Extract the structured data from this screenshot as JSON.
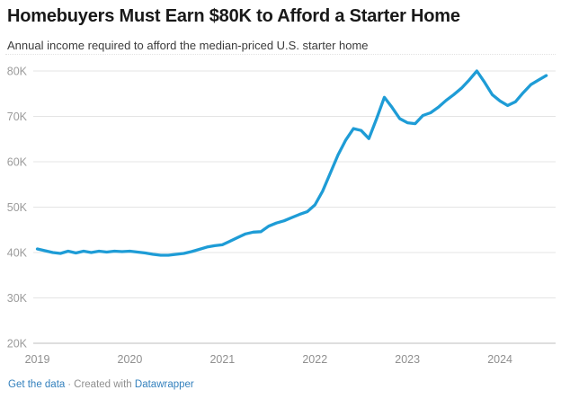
{
  "header": {
    "title": "Homebuyers Must Earn $80K to Afford a Starter Home",
    "subtitle": "Annual income required to afford the median-priced U.S. starter home"
  },
  "footer": {
    "get_data_label": "Get the data",
    "separator": "·",
    "created_with": "Created with",
    "datawrapper_label": "Datawrapper"
  },
  "theme": {
    "line_color": "#1e9cd6",
    "grid_color": "#e4e4e4",
    "baseline_color": "#bdbdbd",
    "tick_label_color": "#9b9b9b",
    "year_label_color": "#8f8f8f",
    "link_color": "#3380bd",
    "title_color": "#191919",
    "subtitle_color": "#3c3c3c"
  },
  "chart_data": {
    "type": "line",
    "title": "Homebuyers Must Earn $80K to Afford a Starter Home",
    "subtitle": "Annual income required to afford the median-priced U.S. starter home",
    "unit": "USD thousands (annual income)",
    "x_start_month": "2019-01",
    "x_frequency": "monthly",
    "x_end_month": "2024-07",
    "ylim": [
      20,
      80
    ],
    "grid": "horizontal",
    "legend": "none",
    "yticks": [
      {
        "label": "80K",
        "value": 80
      },
      {
        "label": "70K",
        "value": 70
      },
      {
        "label": "60K",
        "value": 60
      },
      {
        "label": "50K",
        "value": 50
      },
      {
        "label": "40K",
        "value": 40
      },
      {
        "label": "30K",
        "value": 30
      },
      {
        "label": "20K",
        "value": 20
      }
    ],
    "xticks": [
      {
        "label": "2019",
        "month_offset": 0
      },
      {
        "label": "2020",
        "month_offset": 12
      },
      {
        "label": "2021",
        "month_offset": 24
      },
      {
        "label": "2022",
        "month_offset": 36
      },
      {
        "label": "2023",
        "month_offset": 48
      },
      {
        "label": "2024",
        "month_offset": 60
      }
    ],
    "values": [
      40.8,
      40.4,
      40.0,
      39.8,
      40.3,
      39.9,
      40.3,
      40.0,
      40.3,
      40.1,
      40.3,
      40.2,
      40.3,
      40.1,
      39.9,
      39.6,
      39.4,
      39.4,
      39.6,
      39.8,
      40.2,
      40.7,
      41.2,
      41.5,
      41.7,
      42.5,
      43.3,
      44.1,
      44.5,
      44.6,
      45.8,
      46.5,
      47.0,
      47.7,
      48.4,
      49.0,
      50.5,
      53.5,
      57.5,
      61.5,
      64.8,
      67.3,
      66.9,
      65.1,
      69.5,
      74.2,
      72.0,
      69.5,
      68.6,
      68.4,
      70.2,
      70.8,
      72.0,
      73.5,
      74.8,
      76.2,
      78.0,
      80.0,
      77.5,
      74.8,
      73.4,
      72.4,
      73.2,
      75.2,
      77.0,
      78.0,
      79.0
    ]
  }
}
